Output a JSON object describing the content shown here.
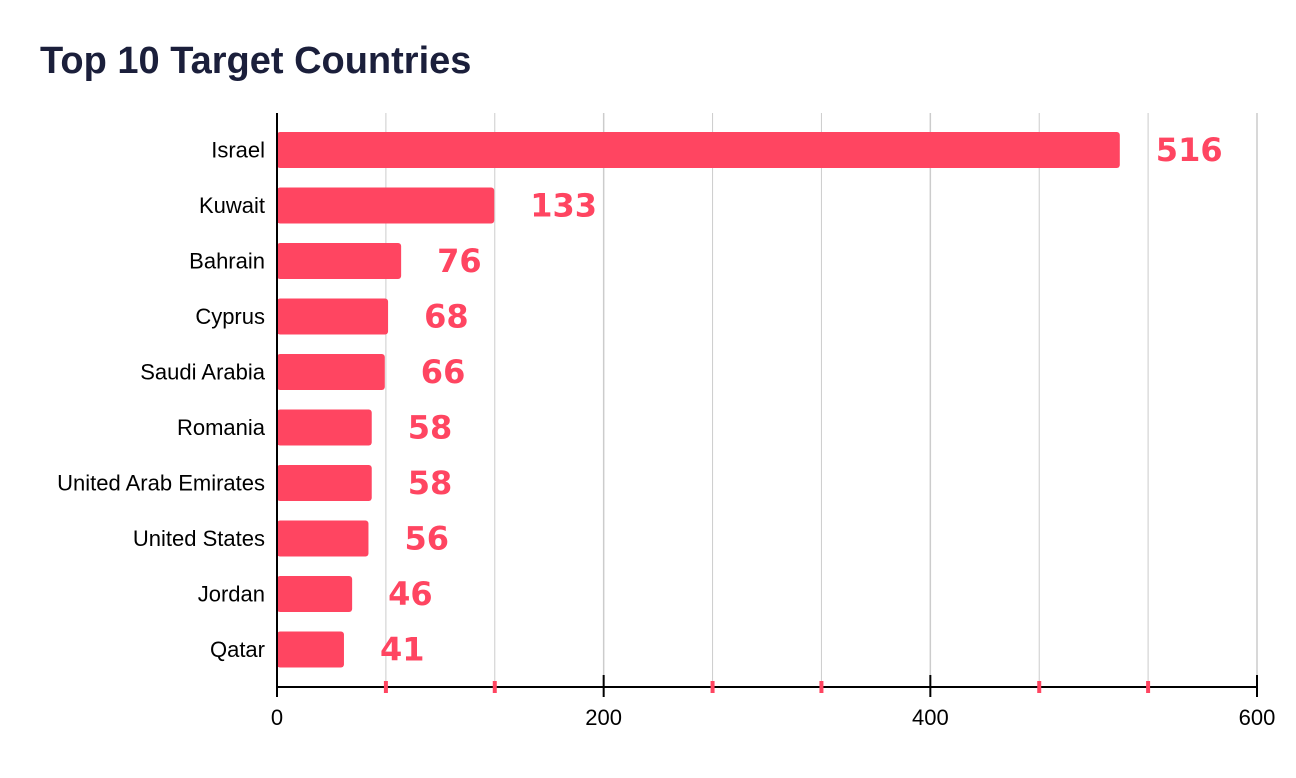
{
  "chart_data": {
    "type": "bar",
    "orientation": "horizontal",
    "title": "Top 10 Target Countries",
    "categories": [
      "Israel",
      "Kuwait",
      "Bahrain",
      "Cyprus",
      "Saudi Arabia",
      "Romania",
      "United Arab Emirates",
      "United States",
      "Jordan",
      "Qatar"
    ],
    "values": [
      516,
      133,
      76,
      68,
      66,
      58,
      58,
      56,
      46,
      41
    ],
    "xlim": [
      0,
      600
    ],
    "x_ticks": [
      0,
      200,
      400,
      600
    ],
    "x_tick_labels": [
      "0",
      "200",
      "400",
      "600"
    ],
    "minor_x_ticks": [
      66.67,
      133.33,
      266.67,
      333.33,
      466.67,
      533.33
    ],
    "grid": true,
    "legend": "none",
    "xlabel": "",
    "ylabel": "",
    "colors": {
      "bar": "#ff4561",
      "value_label": "#ff4561",
      "title": "#1b1f3b",
      "grid": "#cccccc",
      "axis": "#000000",
      "minor_tick": "#ff4561"
    }
  }
}
